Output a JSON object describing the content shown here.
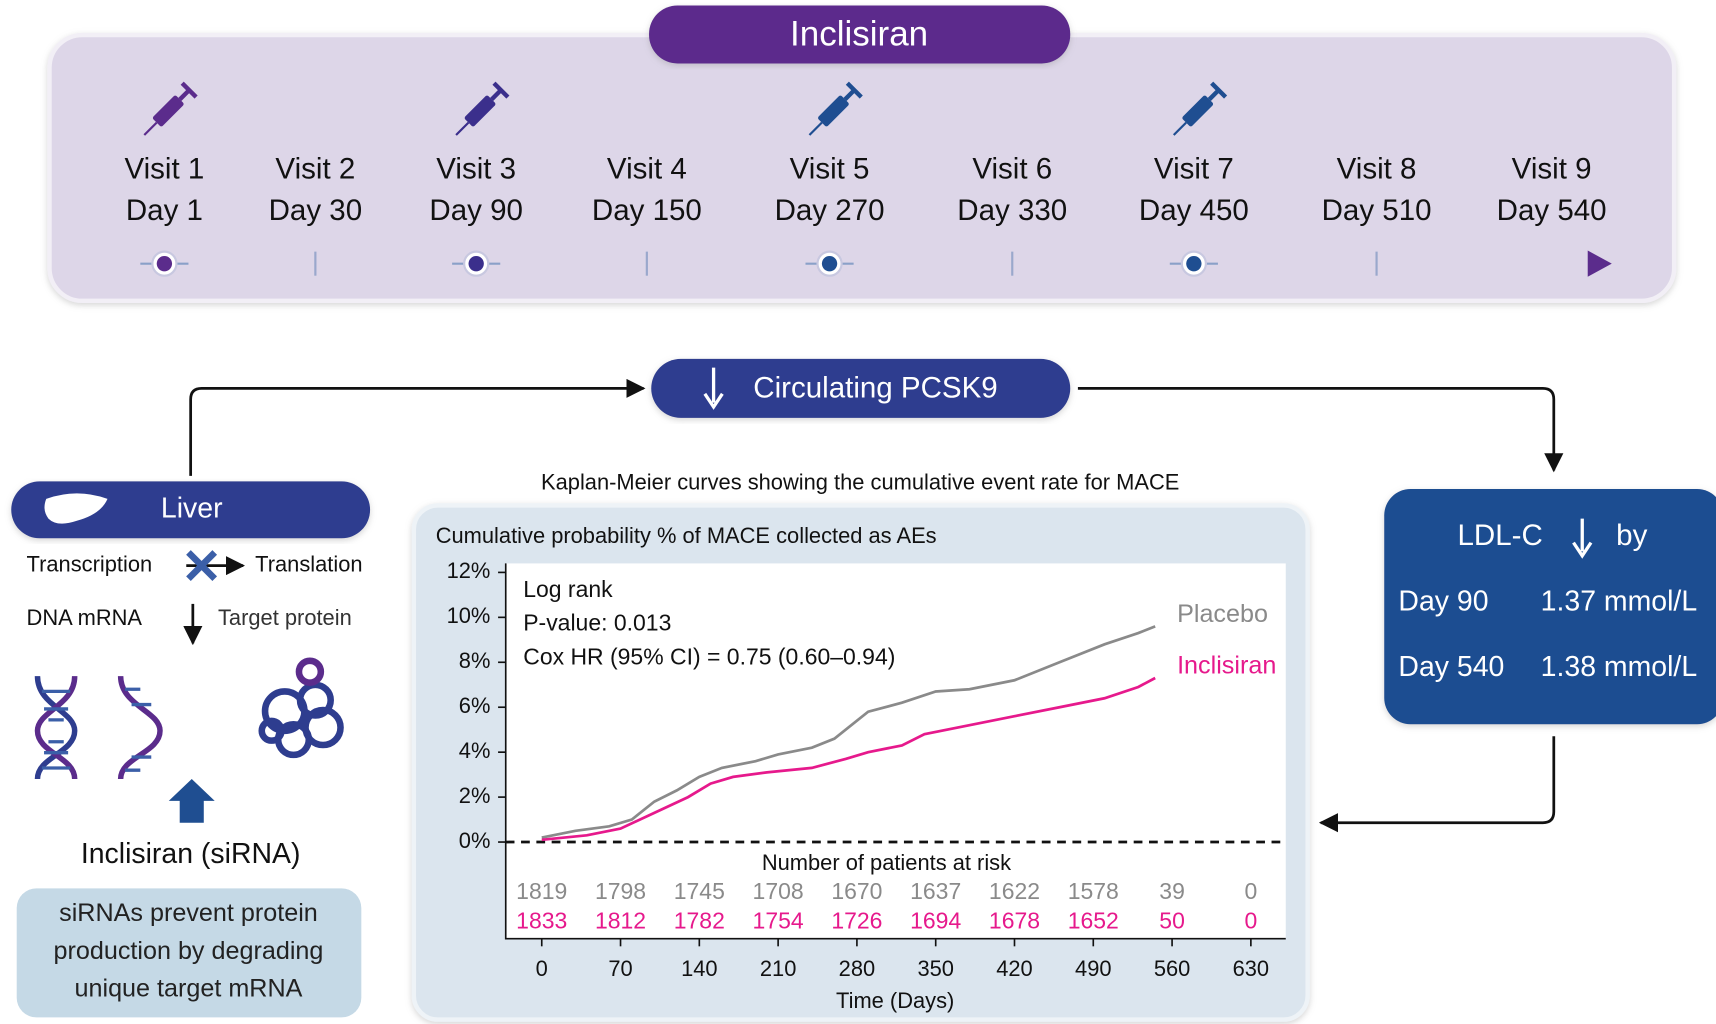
{
  "header": {
    "title": "Inclisiran"
  },
  "visits": [
    {
      "label": "Visit 1",
      "day": "Day 1",
      "injection": true,
      "color": "#5b2c8c",
      "marker": "dot"
    },
    {
      "label": "Visit 2",
      "day": "Day 30",
      "injection": false,
      "color": "#5b2c8c",
      "marker": "tick"
    },
    {
      "label": "Visit 3",
      "day": "Day 90",
      "injection": true,
      "color": "#3b2f8c",
      "marker": "dot"
    },
    {
      "label": "Visit 4",
      "day": "Day 150",
      "injection": false,
      "color": "#3b2f8c",
      "marker": "tick"
    },
    {
      "label": "Visit 5",
      "day": "Day 270",
      "injection": true,
      "color": "#1f4e91",
      "marker": "dot"
    },
    {
      "label": "Visit 6",
      "day": "Day 330",
      "injection": false,
      "color": "#1f4e91",
      "marker": "tick"
    },
    {
      "label": "Visit 7",
      "day": "Day 450",
      "injection": true,
      "color": "#1f4e91",
      "marker": "dot"
    },
    {
      "label": "Visit 8",
      "day": "Day 510",
      "injection": false,
      "color": "#1f4e91",
      "marker": "tick"
    },
    {
      "label": "Visit 9",
      "day": "Day 540",
      "injection": false,
      "color": "#5b2c8c",
      "marker": "arrow"
    }
  ],
  "pcsk9": {
    "label": "Circulating PCSK9"
  },
  "liver": {
    "title": "Liver",
    "transcription": "Transcription",
    "translation": "Translation",
    "dna_mrna": "DNA mRNA",
    "target_protein": "Target protein",
    "drug": "Inclisiran (siRNA)",
    "note": [
      "siRNAs prevent protein",
      "production by degrading",
      "unique target mRNA"
    ]
  },
  "ldl": {
    "title": "LDL-C",
    "suffix": "by",
    "rows": [
      [
        "Day 90",
        "1.37 mmol/L"
      ],
      [
        "Day 540",
        "1.38 mmol/L"
      ]
    ]
  },
  "chart_data": {
    "type": "line",
    "caption": "Kaplan-Meier curves showing the cumulative event rate for MACE",
    "title": "Cumulative probability % of MACE collected as AEs",
    "annotations": [
      "Log rank",
      "P-value: 0.013",
      "Cox HR (95% CI) = 0.75 (0.60–0.94)"
    ],
    "x_label": "Time (Days)",
    "xlim": [
      -32,
      661
    ],
    "xticks": [
      0,
      70,
      140,
      210,
      280,
      350,
      420,
      490,
      560,
      630
    ],
    "ylim": [
      -4.3,
      12.4
    ],
    "yticks": [
      {
        "value": 0,
        "label": "0%"
      },
      {
        "value": 2,
        "label": "2%"
      },
      {
        "value": 4,
        "label": "4%"
      },
      {
        "value": 6,
        "label": "6%"
      },
      {
        "value": 8,
        "label": "8%"
      },
      {
        "value": 10,
        "label": "10%"
      },
      {
        "value": 12,
        "label": "12%"
      }
    ],
    "zero_line": true,
    "series": [
      {
        "name": "Placebo",
        "color": "#8a8a8a",
        "x": [
          0,
          30,
          60,
          80,
          100,
          120,
          140,
          160,
          190,
          210,
          240,
          260,
          270,
          290,
          320,
          350,
          380,
          420,
          460,
          500,
          530,
          545
        ],
        "values": [
          0.2,
          0.5,
          0.7,
          1.0,
          1.8,
          2.3,
          2.9,
          3.3,
          3.6,
          3.9,
          4.2,
          4.6,
          5.0,
          5.8,
          6.2,
          6.7,
          6.8,
          7.2,
          8.0,
          8.8,
          9.3,
          9.6
        ]
      },
      {
        "name": "Inclisiran",
        "color": "#e6198c",
        "x": [
          0,
          40,
          70,
          100,
          130,
          150,
          170,
          200,
          240,
          270,
          290,
          320,
          340,
          380,
          420,
          460,
          500,
          530,
          545
        ],
        "values": [
          0.1,
          0.3,
          0.6,
          1.3,
          2.0,
          2.6,
          2.9,
          3.1,
          3.3,
          3.7,
          4.0,
          4.3,
          4.8,
          5.2,
          5.6,
          6.0,
          6.4,
          6.9,
          7.3
        ]
      }
    ],
    "risk_table": {
      "title": "Number of patients at risk",
      "rows": [
        {
          "color": "#8a8a8a",
          "values": [
            1819,
            1798,
            1745,
            1708,
            1670,
            1637,
            1622,
            1578,
            39,
            0
          ]
        },
        {
          "color": "#e6198c",
          "values": [
            1833,
            1812,
            1782,
            1754,
            1726,
            1694,
            1678,
            1652,
            50,
            0
          ]
        }
      ]
    }
  }
}
